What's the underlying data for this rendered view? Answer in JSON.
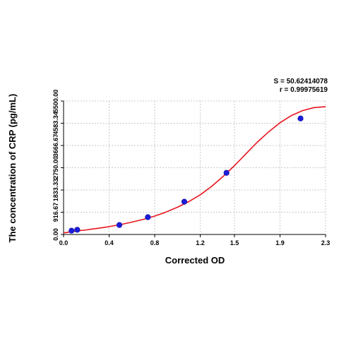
{
  "stats": {
    "s_text": "S = 50.62414078",
    "r_text": "r = 0.99975619"
  },
  "chart_data": {
    "type": "scatter",
    "title": "",
    "xlabel": "Corrected OD",
    "ylabel": "The concentration of CRP (pg/mL)",
    "xlim": [
      0.0,
      2.3
    ],
    "ylim": [
      0.0,
      5500.0
    ],
    "x_ticks": [
      0.0,
      0.4,
      0.8,
      1.2,
      1.5,
      1.9,
      2.3
    ],
    "x_tick_labels": [
      "0.0",
      "0.4",
      "0.8",
      "1.2",
      "1.5",
      "1.9",
      "2.3"
    ],
    "y_ticks": [
      0.0,
      916.67,
      1833.33,
      2750.0,
      3666.67,
      4583.34,
      5500.0
    ],
    "y_tick_labels": [
      "0.00",
      "916.67",
      "1833.33",
      "2750.00",
      "3666.67",
      "4583.34",
      "5500.00"
    ],
    "grid": true,
    "series": [
      {
        "kind": "points",
        "color": "#1c1cd8",
        "x": [
          0.07,
          0.12,
          0.49,
          0.74,
          1.06,
          1.43,
          2.08
        ],
        "y": [
          156,
          195,
          390,
          712,
          1350,
          2540,
          4780
        ]
      },
      {
        "kind": "fitted-curve",
        "color": "#e8141e",
        "x": [
          0.0,
          0.1,
          0.2,
          0.3,
          0.4,
          0.5,
          0.6,
          0.7,
          0.8,
          0.9,
          1.0,
          1.1,
          1.2,
          1.3,
          1.4,
          1.5,
          1.6,
          1.7,
          1.8,
          1.9,
          2.0,
          2.1,
          2.2,
          2.3
        ],
        "y": [
          63,
          136,
          189,
          253,
          324,
          408,
          508,
          622,
          757,
          925,
          1124,
          1355,
          1635,
          1981,
          2389,
          2837,
          3321,
          3800,
          4225,
          4607,
          4900,
          5107,
          5230,
          5265
        ]
      }
    ]
  }
}
